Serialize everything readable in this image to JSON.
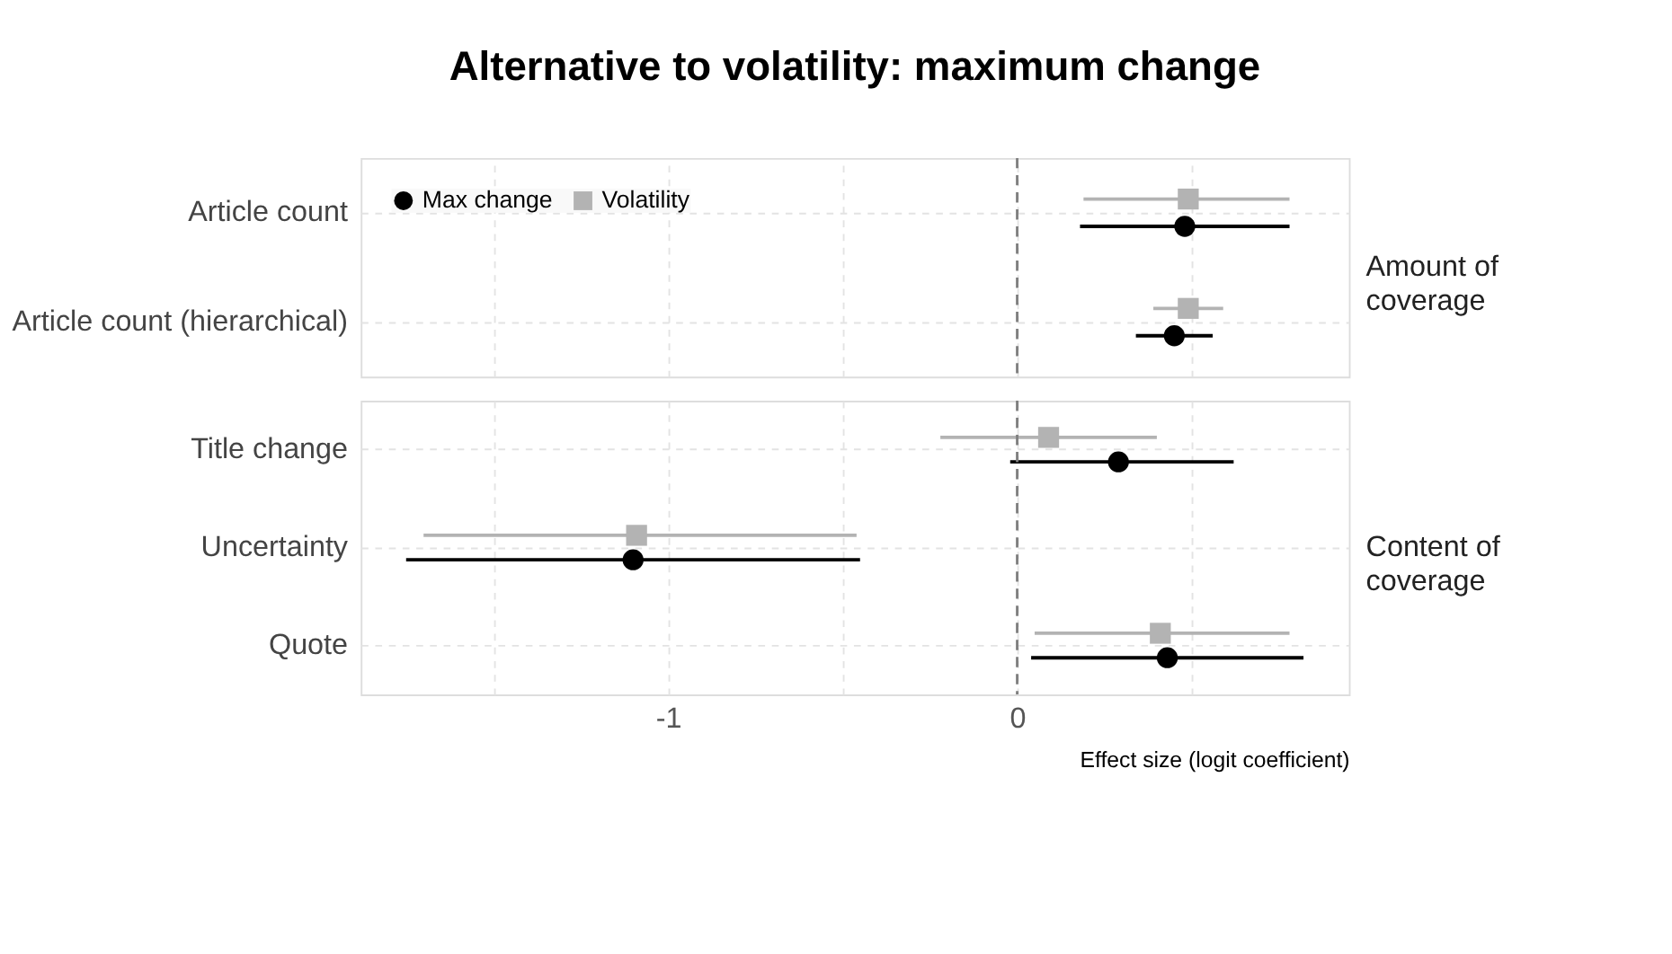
{
  "chart_data": [
    {
      "type": "scatter",
      "orientation": "horizontal",
      "title": "Alternative to volatility: maximum change",
      "categories": [
        "Article count",
        "Article count (hierarchical)"
      ],
      "annotations": [
        "Amount of coverage"
      ],
      "xlim": [
        -1.88,
        0.95
      ],
      "xticks": [
        {
          "value": -1.5,
          "label": null
        },
        -1,
        {
          "value": -0.5,
          "label": null
        },
        0,
        {
          "value": 0.5,
          "label": null
        }
      ],
      "tick_labels": "y",
      "grid": true,
      "legend": "top left",
      "ref_lines": [
        {
          "axis": "x",
          "value": 0,
          "label": null,
          "color": "#7f7f7f",
          "line_style": "dashed"
        }
      ],
      "series": [
        {
          "name": "Max change",
          "color": "#000000",
          "marker": "circle",
          "values": [
            0.48,
            0.45
          ],
          "errors": [
            [
              0.18,
              0.78
            ],
            [
              0.34,
              0.56
            ]
          ]
        },
        {
          "name": "Volatility",
          "color": "#b3b3b3",
          "marker": "square",
          "values": [
            0.49,
            0.49
          ],
          "errors": [
            [
              0.19,
              0.78
            ],
            [
              0.39,
              0.59
            ]
          ]
        }
      ]
    },
    {
      "type": "scatter",
      "orientation": "horizontal",
      "xlabel": "Effect size (logit coefficient)",
      "categories": [
        "Title change",
        "Uncertainty",
        "Quote"
      ],
      "annotations": [
        "Content of coverage"
      ],
      "xlim": [
        -1.88,
        0.95
      ],
      "xticks": [
        {
          "value": -1.5,
          "label": null
        },
        -1,
        {
          "value": -0.5,
          "label": null
        },
        0,
        {
          "value": 0.5,
          "label": null
        }
      ],
      "grid": true,
      "ref_lines": [
        {
          "axis": "x",
          "value": 0,
          "label": null,
          "color": "#7f7f7f",
          "line_style": "dashed"
        }
      ],
      "series": [
        {
          "color": "#000000",
          "marker": "circle",
          "values": [
            0.29,
            -1.1,
            0.43
          ],
          "errors": [
            [
              -0.02,
              0.62
            ],
            [
              -1.75,
              -0.45
            ],
            [
              0.04,
              0.82
            ]
          ]
        },
        {
          "color": "#b3b3b3",
          "marker": "square",
          "values": [
            0.09,
            -1.09,
            0.41
          ],
          "errors": [
            [
              -0.22,
              0.4
            ],
            [
              -1.7,
              -0.46
            ],
            [
              0.05,
              0.78
            ]
          ]
        }
      ]
    }
  ]
}
